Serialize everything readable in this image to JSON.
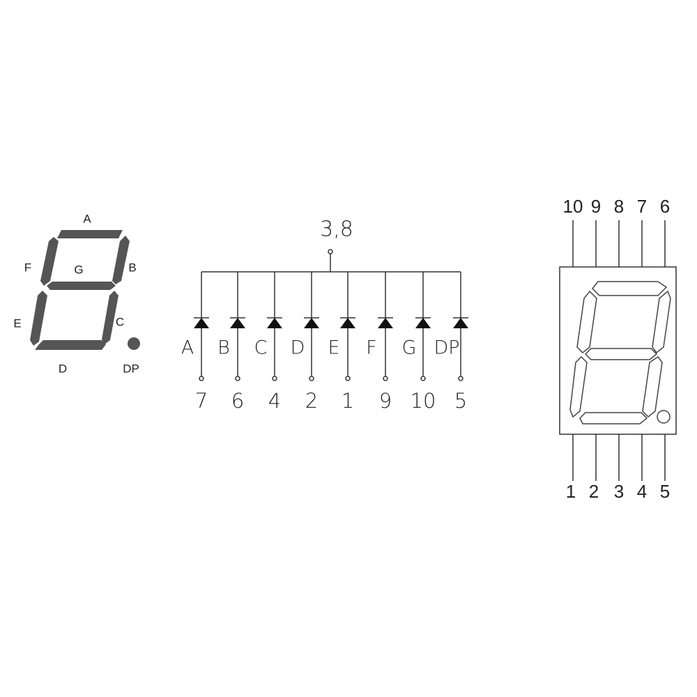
{
  "display": {
    "segment_labels": [
      "A",
      "F",
      "G",
      "B",
      "E",
      "C",
      "D",
      "DP"
    ]
  },
  "circuit": {
    "common_pins": "3,8",
    "diodes": [
      {
        "segment": "A",
        "pin": "7"
      },
      {
        "segment": "B",
        "pin": "6"
      },
      {
        "segment": "C",
        "pin": "4"
      },
      {
        "segment": "D",
        "pin": "2"
      },
      {
        "segment": "E",
        "pin": "1"
      },
      {
        "segment": "F",
        "pin": "9"
      },
      {
        "segment": "G",
        "pin": "10"
      },
      {
        "segment": "DP",
        "pin": "5"
      }
    ]
  },
  "package": {
    "top_pins": [
      "10",
      "9",
      "8",
      "7",
      "6"
    ],
    "bottom_pins": [
      "1",
      "2",
      "3",
      "4",
      "5"
    ]
  }
}
